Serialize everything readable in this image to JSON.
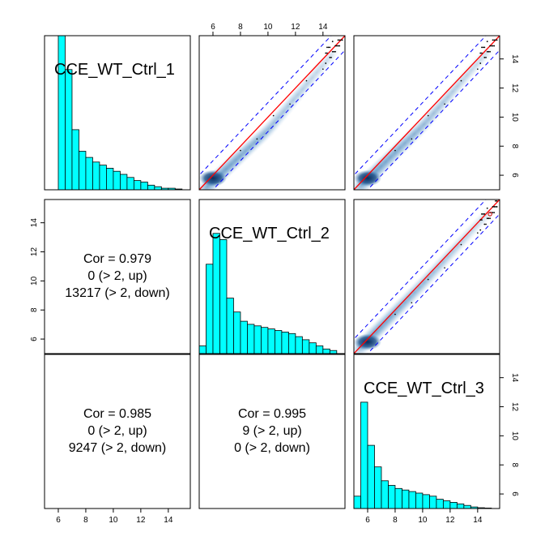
{
  "chart_data": {
    "type": "scatter",
    "layout": "pairs-matrix",
    "axis_range": [
      5,
      15.6
    ],
    "ticks": [
      6,
      8,
      10,
      12,
      14
    ],
    "samples": [
      "CCE_WT_Ctrl_1",
      "CCE_WT_Ctrl_2",
      "CCE_WT_Ctrl_3"
    ],
    "histograms": [
      {
        "sample": "CCE_WT_Ctrl_1",
        "bins": [
          5.5,
          6,
          6.5,
          7,
          7.5,
          8,
          8.5,
          9,
          9.5,
          10,
          10.5,
          11,
          11.5,
          12,
          12.5,
          13,
          13.5,
          14,
          14.5,
          15
        ],
        "rel_heights": [
          0,
          1.0,
          0.78,
          0.39,
          0.25,
          0.21,
          0.18,
          0.16,
          0.14,
          0.12,
          0.1,
          0.08,
          0.06,
          0.05,
          0.03,
          0.02,
          0.01,
          0.01,
          0.005
        ]
      },
      {
        "sample": "CCE_WT_Ctrl_2",
        "bins": [
          5,
          5.5,
          6,
          6.5,
          7,
          7.5,
          8,
          8.5,
          9,
          9.5,
          10,
          10.5,
          11,
          11.5,
          12,
          12.5,
          13,
          13.5,
          14,
          14.5,
          15
        ],
        "rel_heights": [
          0.05,
          0.58,
          0.78,
          0.74,
          0.36,
          0.27,
          0.21,
          0.19,
          0.18,
          0.17,
          0.16,
          0.15,
          0.14,
          0.13,
          0.11,
          0.09,
          0.07,
          0.05,
          0.03,
          0.02
        ]
      },
      {
        "sample": "CCE_WT_Ctrl_3",
        "bins": [
          5,
          5.5,
          6,
          6.5,
          7,
          7.5,
          8,
          8.5,
          9,
          9.5,
          10,
          10.5,
          11,
          11.5,
          12,
          12.5,
          13,
          13.5,
          14,
          14.5,
          15
        ],
        "rel_heights": [
          0.08,
          0.69,
          0.41,
          0.27,
          0.18,
          0.15,
          0.13,
          0.12,
          0.11,
          0.1,
          0.09,
          0.08,
          0.06,
          0.05,
          0.04,
          0.03,
          0.02,
          0.01,
          0.005,
          0.003
        ]
      }
    ],
    "correlations": [
      {
        "pair": [
          "CCE_WT_Ctrl_1",
          "CCE_WT_Ctrl_2"
        ],
        "cor": "Cor = 0.979",
        "up": "0 (> 2, up)",
        "down": "13217 (> 2, down)"
      },
      {
        "pair": [
          "CCE_WT_Ctrl_1",
          "CCE_WT_Ctrl_3"
        ],
        "cor": "Cor = 0.985",
        "up": "0 (> 2, up)",
        "down": "9247 (> 2, down)"
      },
      {
        "pair": [
          "CCE_WT_Ctrl_2",
          "CCE_WT_Ctrl_3"
        ],
        "cor": "Cor = 0.995",
        "up": "9 (> 2, up)",
        "down": "0 (> 2, down)"
      }
    ],
    "scatter_panels": [
      {
        "x": "CCE_WT_Ctrl_2",
        "y": "CCE_WT_Ctrl_1",
        "offset": 0.9
      },
      {
        "x": "CCE_WT_Ctrl_3",
        "y": "CCE_WT_Ctrl_1",
        "offset": 0.6
      },
      {
        "x": "CCE_WT_Ctrl_3",
        "y": "CCE_WT_Ctrl_2",
        "offset": 0.2
      }
    ],
    "reference_lines": {
      "identity_color": "#ff0000",
      "fold_band": 1,
      "band_color": "#0000ff"
    },
    "density_color": "#2c6faa",
    "hist_fill": "#00ffff",
    "grid": false
  }
}
